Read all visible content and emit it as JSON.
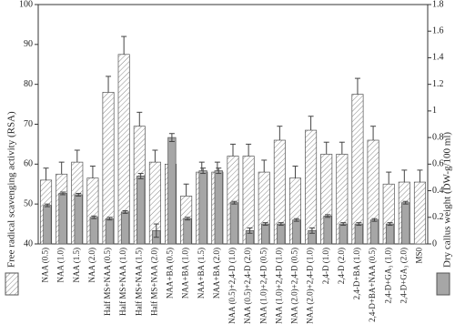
{
  "chart_data": {
    "type": "bar",
    "categories": [
      "NAA (0.5)",
      "NAA (1.0)",
      "NAA (1.5)",
      "NAA (2.0)",
      "Half MS+NAA (0.5)",
      "Half MS+NAA (1.0)",
      "Half MS+NAA (1.5)",
      "Half MS+NAA (2.0)",
      "NAA+BA (0.5)",
      "NAA+BA (1.0)",
      "NAA+BA (1.5)",
      "NAA+BA (2.0)",
      "NAA (0.5)+2,4-D (1.0)",
      "NAA (0.5)+2,4-D (2.0)",
      "NAA (1.0)+2,4-D (0.5)",
      "NAA (1.0)+2,4-D (1.0)",
      "NAA (2.0)+2,4-D (0.5)",
      "NAA (2.0)+2,4-D (1.0)",
      "2,4-D (1.0)",
      "2,4-D (2.0)",
      "2,4-D+BA (1.0)",
      "2,4-D+BA+NAA (0.5)",
      "2,4-D+GA₃ (1.0)",
      "2,4-D+GA₃ (2.0)",
      "MS0"
    ],
    "series": [
      {
        "name": "Free radical scavenging activity (RSA)",
        "color": "#ffffff",
        "hatch": true,
        "values": [
          56,
          57.5,
          60.5,
          56.5,
          78,
          87.5,
          69.5,
          60.5,
          60,
          52,
          58,
          58,
          62,
          62,
          58,
          66,
          56.5,
          68.5,
          62.5,
          62.5,
          77.5,
          66,
          55,
          55.5,
          55.5
        ],
        "errors": [
          3,
          3,
          3,
          3,
          4,
          4.5,
          3.5,
          3,
          3,
          3,
          2.5,
          2.5,
          3,
          3,
          3,
          3.5,
          3,
          3.5,
          3,
          3,
          4,
          3.5,
          3,
          3,
          3
        ]
      },
      {
        "name": "Dry callus weight (DW-g/100 ml)",
        "color": "#a6a6a6",
        "axis": "y2",
        "values": [
          0.29,
          0.38,
          0.37,
          0.2,
          0.19,
          0.24,
          0.51,
          0.1,
          0.8,
          0.19,
          0.55,
          0.55,
          0.31,
          0.1,
          0.15,
          0.15,
          0.18,
          0.1,
          0.21,
          0.15,
          0.15,
          0.18,
          0.15,
          0.31,
          null
        ],
        "errors": [
          0.01,
          0.01,
          0.01,
          0.01,
          0.01,
          0.01,
          0.02,
          0.05,
          0.03,
          0.01,
          0.02,
          0.02,
          0.01,
          0.02,
          0.01,
          0.01,
          0.01,
          0.02,
          0.01,
          0.01,
          0.01,
          0.01,
          0.01,
          0.01,
          null
        ]
      }
    ],
    "ylim": [
      40,
      100
    ],
    "yticks": [
      40,
      50,
      60,
      70,
      80,
      90,
      100
    ],
    "y2lim": [
      0,
      1.8
    ],
    "y2ticks": [
      0,
      0.2,
      0.4,
      0.6,
      0.8,
      1.0,
      1.2,
      1.4,
      1.6,
      1.8
    ]
  }
}
